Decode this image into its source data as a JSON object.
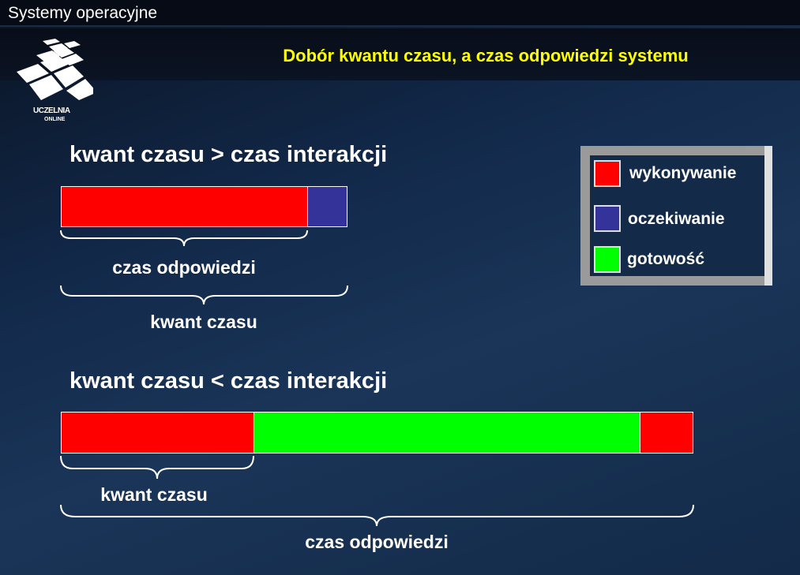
{
  "header": {
    "title": "Systemy operacyjne"
  },
  "logo": {
    "text_line1": "UCZELNIA",
    "text_line2": "ONLINE"
  },
  "slide_title": "Dobór kwantu czasu, a czas odpowiedzi systemu",
  "colors": {
    "wykonywanie": "#ff0000",
    "oczekiwanie": "#333399",
    "gotowosc": "#00ff00",
    "title": "#ffff00"
  },
  "case1": {
    "heading": "kwant czasu > czas interakcji",
    "brace1_label": "czas odpowiedzi",
    "brace2_label": "kwant czasu"
  },
  "case2": {
    "heading": "kwant czasu < czas interakcji",
    "brace1_label": "kwant czasu",
    "brace2_label": "czas odpowiedzi"
  },
  "legend": {
    "items": [
      {
        "label": "wykonywanie"
      },
      {
        "label": "oczekiwanie"
      },
      {
        "label": "gotowość"
      }
    ]
  }
}
